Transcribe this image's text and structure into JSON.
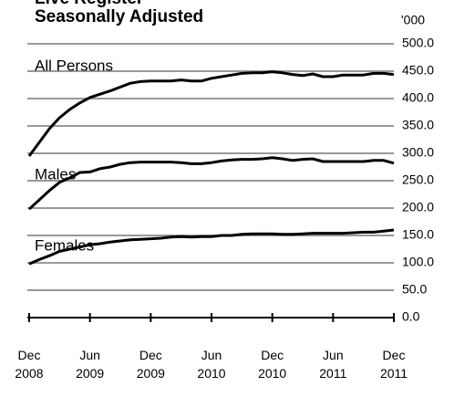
{
  "chart_data": {
    "type": "line",
    "title": "Live Register",
    "subtitle": "Seasonally Adjusted",
    "y_unit": "'000",
    "categories": [
      "Dec 2008",
      null,
      null,
      null,
      null,
      null,
      "Jun 2009",
      null,
      null,
      null,
      null,
      null,
      "Dec 2009",
      null,
      null,
      null,
      null,
      null,
      "Jun 2010",
      null,
      null,
      null,
      null,
      null,
      "Dec 2010",
      null,
      null,
      null,
      null,
      null,
      "Jun 2011",
      null,
      null,
      null,
      null,
      null,
      "Dec 2011"
    ],
    "series": [
      {
        "name": "All Persons",
        "color": "#000000",
        "values": [
          295,
          320,
          345,
          365,
          380,
          392,
          402,
          408,
          414,
          421,
          428,
          431,
          432,
          432,
          432,
          434,
          432,
          432,
          437,
          440,
          443,
          446,
          447,
          447,
          449,
          447,
          444,
          442,
          445,
          440,
          440,
          443,
          443,
          443,
          446,
          446,
          444
        ]
      },
      {
        "name": "Males",
        "color": "#000000",
        "values": [
          198,
          215,
          232,
          247,
          255,
          265,
          266,
          272,
          275,
          280,
          283,
          284,
          284,
          284,
          284,
          283,
          281,
          281,
          283,
          286,
          288,
          289,
          289,
          290,
          292,
          290,
          287,
          289,
          290,
          285,
          285,
          285,
          285,
          285,
          287,
          287,
          282
        ]
      },
      {
        "name": "Females",
        "color": "#000000",
        "values": [
          98,
          106,
          113,
          121,
          125,
          129,
          133,
          135,
          138,
          140,
          142,
          143,
          144,
          145,
          147,
          148,
          147,
          148,
          148,
          150,
          150,
          152,
          153,
          153,
          153,
          152,
          152,
          153,
          154,
          154,
          154,
          154,
          155,
          156,
          156,
          158,
          160
        ]
      }
    ],
    "ylim": [
      0,
      500
    ],
    "yticks": [
      {
        "value": 0,
        "label": "0.0"
      },
      {
        "value": 50,
        "label": "50.0"
      },
      {
        "value": 100,
        "label": "100.0"
      },
      {
        "value": 150,
        "label": "150.0"
      },
      {
        "value": 200,
        "label": "200.0"
      },
      {
        "value": 250,
        "label": "250.0"
      },
      {
        "value": 300,
        "label": "300.0"
      },
      {
        "value": 350,
        "label": "350.0"
      },
      {
        "value": 400,
        "label": "400.0"
      },
      {
        "value": 450,
        "label": "450.0"
      },
      {
        "value": 500,
        "label": "500.0"
      }
    ],
    "grid": true,
    "grid_color": "#999999"
  }
}
